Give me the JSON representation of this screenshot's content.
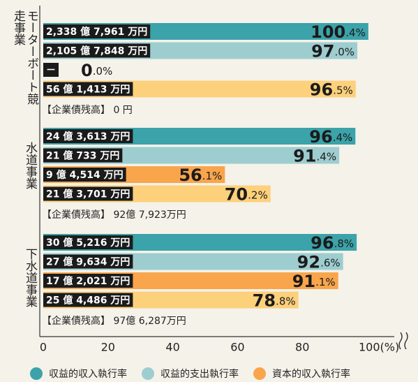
{
  "chart_data": {
    "type": "bar",
    "categories": [
      "モーターボート競走事業",
      "水道事業",
      "下水道事業"
    ],
    "notes": [
      "【企業債残高】 0 円",
      "【企業債残高】 92億 7,923万円",
      "【企業債残高】 97億 6,287万円"
    ],
    "series": [
      {
        "name": "収益的収入執行率",
        "color": "#3ba3a9",
        "values": [
          100.4,
          96.4,
          96.8
        ],
        "value_labels": [
          "100.4%",
          "96.4%",
          "96.8%"
        ],
        "amounts": [
          "2,338 億 7,961 万円",
          "24 億 3,613 万円",
          "30 億 5,216 万円"
        ]
      },
      {
        "name": "収益的支出執行率",
        "color": "#9ecdd0",
        "values": [
          97.0,
          91.4,
          92.6
        ],
        "value_labels": [
          "97.0%",
          "91.4%",
          "92.6%"
        ],
        "amounts": [
          "2,105 億 7,848 万円",
          "21 億 733 万円",
          "27 億 9,634 万円"
        ]
      },
      {
        "name": "資本的収入執行率",
        "color": "#f8a54c",
        "values": [
          0,
          56.1,
          91.1
        ],
        "value_labels": [
          "0.0%",
          "56.1%",
          "91.1%"
        ],
        "amounts": [
          "－",
          "9 億 4,514 万円",
          "17 億 2,021 万円"
        ]
      },
      {
        "color": "#fdd07c",
        "values": [
          96.5,
          70.2,
          78.8
        ],
        "value_labels": [
          "96.5%",
          "70.2%",
          "78.8%"
        ],
        "amounts": [
          "56 億 1,413 万円",
          "21 億 3,701 万円",
          "25 億 4,486 万円"
        ]
      }
    ],
    "xlim": [
      0,
      100
    ],
    "xticks": [
      0,
      20,
      40,
      60,
      80,
      {
        "value": 100,
        "label": "100(%)"
      }
    ]
  }
}
